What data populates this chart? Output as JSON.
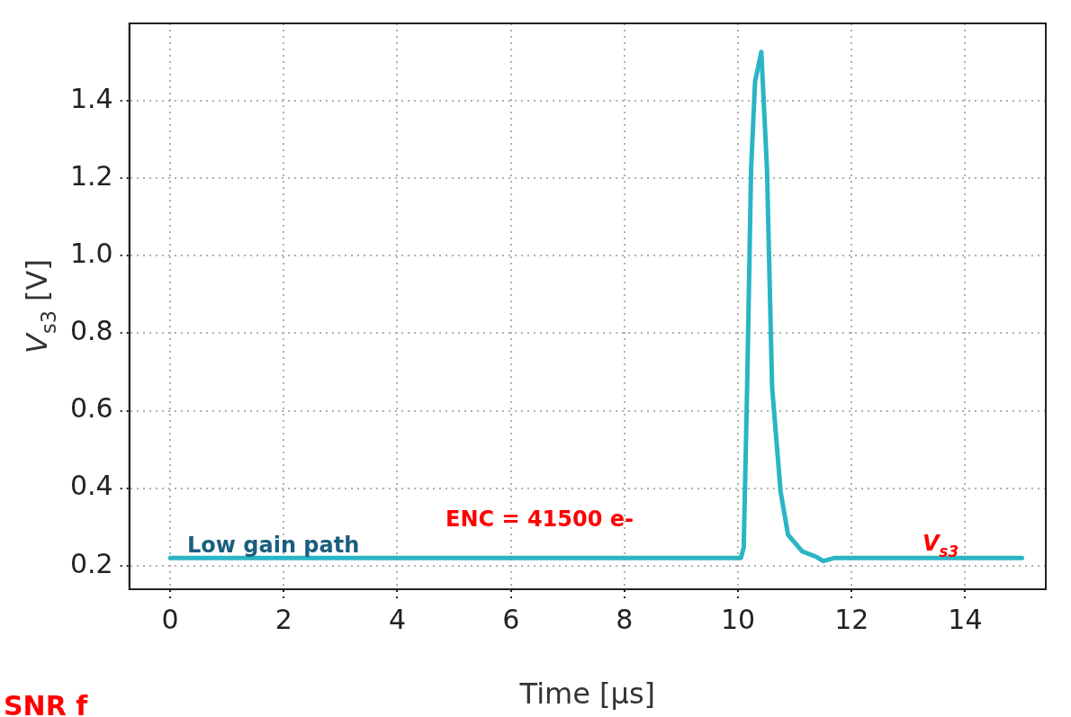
{
  "chart_data": {
    "type": "line",
    "xlabel": "Time [μs]",
    "ylabel": "V$_{s3}$ [V]",
    "annotations": [
      "Low gain path",
      "ENC = 41500 e-",
      "V$_{s3}$",
      "SNR f"
    ],
    "xlim": [
      -0.72,
      15.42
    ],
    "ylim": [
      0.139,
      1.6
    ],
    "xticks": [
      0,
      2,
      4,
      6,
      8,
      10,
      12,
      14
    ],
    "yticks": [
      {
        "value": 0.2,
        "label": "0.2"
      },
      {
        "value": 0.4,
        "label": "0.4"
      },
      {
        "value": 0.6,
        "label": "0.6"
      },
      {
        "value": 0.8,
        "label": "0.8"
      },
      {
        "value": 1.0,
        "label": "1.0"
      },
      {
        "value": 1.2,
        "label": "1.2"
      },
      {
        "value": 1.4,
        "label": "1.4"
      }
    ],
    "grid": true,
    "legend": false,
    "marker": "none",
    "line_style": "solid",
    "series": [
      {
        "color": "#2ab5c5",
        "x": [
          0,
          2,
          4,
          6,
          8,
          10,
          10.05,
          10.1,
          10.16,
          10.23,
          10.3,
          10.41,
          10.51,
          10.6,
          10.75,
          10.88,
          11.13,
          11.39,
          11.5,
          11.7,
          12,
          14,
          15
        ],
        "values": [
          0.22,
          0.22,
          0.22,
          0.22,
          0.22,
          0.22,
          0.22,
          0.246,
          0.66,
          1.224,
          1.45,
          1.526,
          1.224,
          0.66,
          0.39,
          0.28,
          0.237,
          0.222,
          0.212,
          0.22,
          0.22,
          0.22,
          0.22
        ]
      }
    ]
  }
}
